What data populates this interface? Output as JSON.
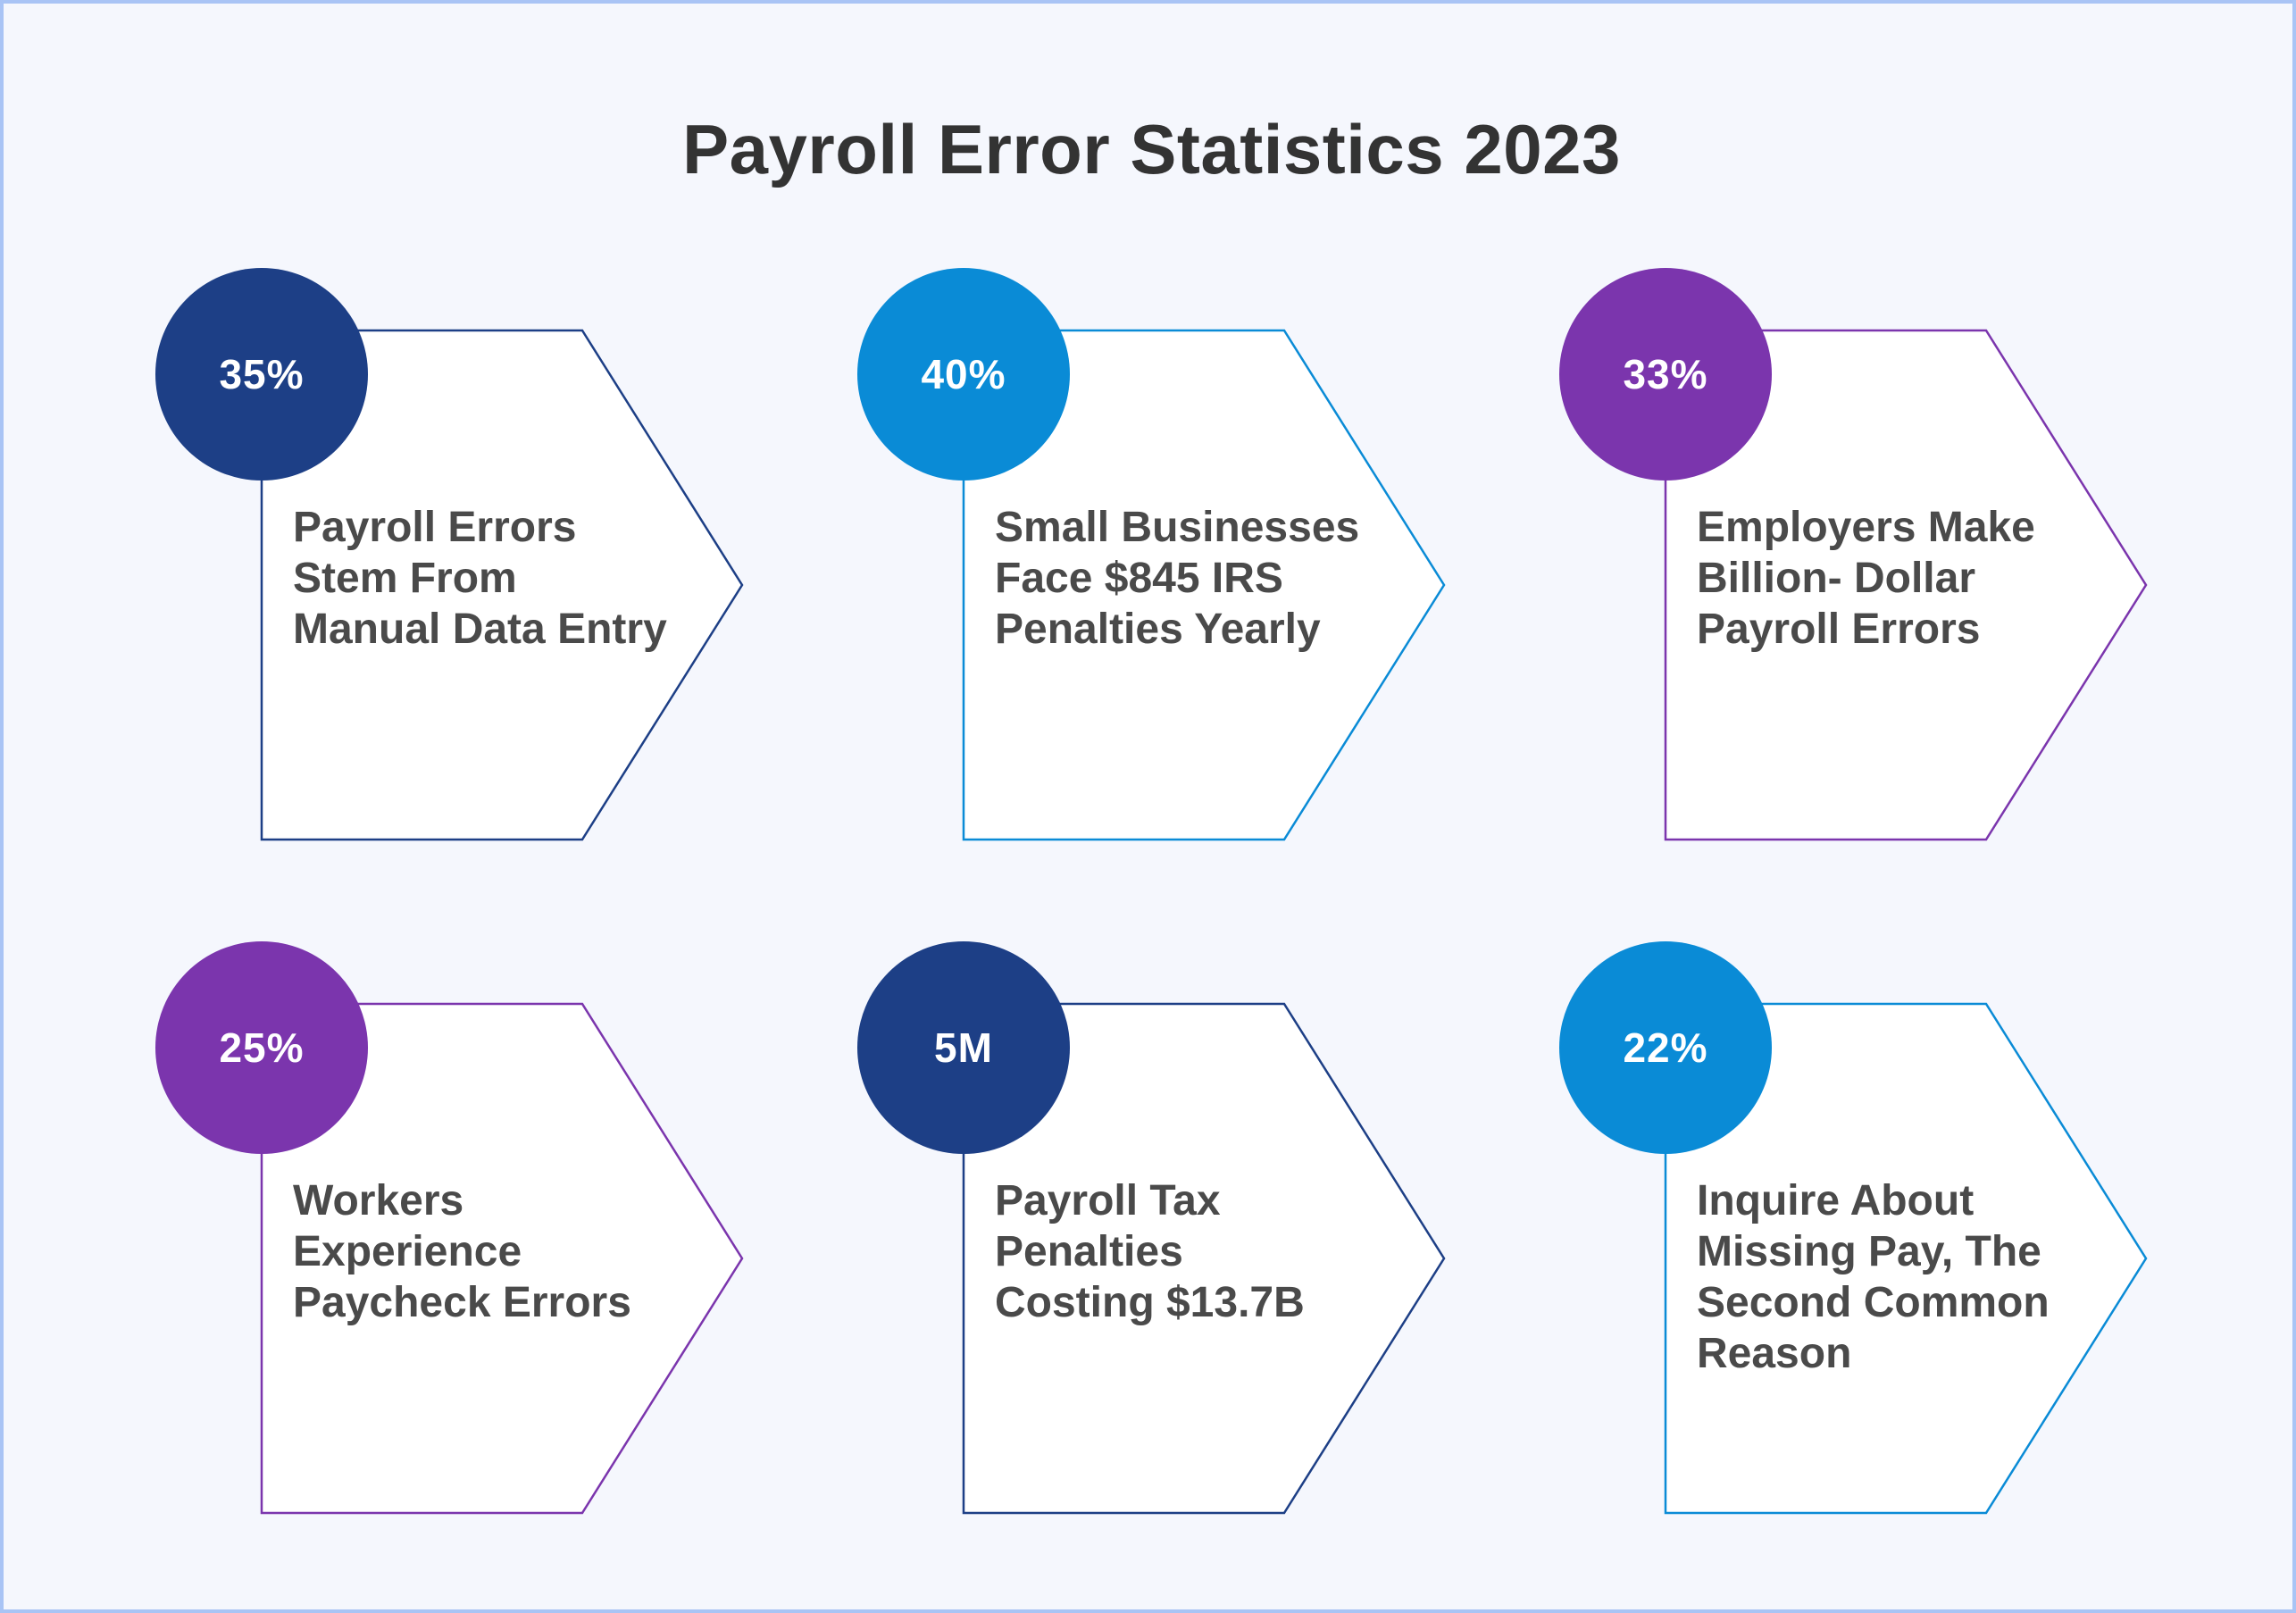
{
  "title": "Payroll Error Statistics 2023",
  "colors": {
    "navy": "#1d3f86",
    "blue": "#0a8bd6",
    "purple": "#7b35ad",
    "background": "#f5f7fd",
    "border": "#a9c4f5",
    "text": "#4a4a4a"
  },
  "stats": [
    {
      "value": "35%",
      "line1": "Payroll Errors",
      "line2": "Stem From",
      "line3": "Manual Data Entry",
      "line4": "",
      "color": "#1d3f86"
    },
    {
      "value": "40%",
      "line1": "Small Businesses",
      "line2": "Face $845 IRS",
      "line3": "Penalties Yearly",
      "line4": "",
      "color": "#0a8bd6"
    },
    {
      "value": "33%",
      "line1": "Employers Make",
      "line2": "Billion- Dollar",
      "line3": "Payroll Errors",
      "line4": "",
      "color": "#7b35ad"
    },
    {
      "value": "25%",
      "line1": "Workers",
      "line2": "Experience",
      "line3": "Paycheck Errors",
      "line4": "",
      "color": "#7b35ad"
    },
    {
      "value": "5M",
      "line1": "Payroll Tax",
      "line2": "Penalties",
      "line3": "Costing $13.7B",
      "line4": "",
      "color": "#1d3f86"
    },
    {
      "value": "22%",
      "line1": "Inquire About",
      "line2": "Missing Pay, The",
      "line3": "Second Common",
      "line4": "Reason",
      "color": "#0a8bd6"
    }
  ]
}
